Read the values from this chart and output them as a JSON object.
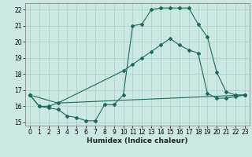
{
  "xlabel": "Humidex (Indice chaleur)",
  "bg_color": "#cce8e4",
  "grid_color": "#aaccc8",
  "line_color": "#1a6b5a",
  "xlim": [
    -0.5,
    23.5
  ],
  "ylim": [
    14.8,
    22.4
  ],
  "xticks": [
    0,
    1,
    2,
    3,
    4,
    5,
    6,
    7,
    8,
    9,
    10,
    11,
    12,
    13,
    14,
    15,
    16,
    17,
    18,
    19,
    20,
    21,
    22,
    23
  ],
  "yticks": [
    15,
    16,
    17,
    18,
    19,
    20,
    21,
    22
  ],
  "curve1_x": [
    0,
    1,
    2,
    3,
    4,
    5,
    6,
    7,
    8,
    9,
    10,
    11,
    12,
    13,
    14,
    15,
    16,
    17,
    18,
    19,
    20,
    21,
    22,
    23
  ],
  "curve1_y": [
    16.7,
    16.0,
    15.9,
    15.8,
    15.4,
    15.3,
    15.1,
    15.1,
    16.1,
    16.1,
    16.7,
    21.0,
    21.1,
    22.0,
    22.1,
    22.1,
    22.1,
    22.1,
    21.1,
    20.3,
    18.1,
    16.9,
    16.7,
    16.7
  ],
  "curve2_x": [
    0,
    1,
    2,
    3,
    10,
    11,
    12,
    13,
    14,
    15,
    16,
    17,
    18,
    19,
    20,
    21,
    22,
    23
  ],
  "curve2_y": [
    16.7,
    16.0,
    16.0,
    16.2,
    18.2,
    18.6,
    19.0,
    19.4,
    19.8,
    20.2,
    19.8,
    19.5,
    19.3,
    16.8,
    16.5,
    16.5,
    16.6,
    16.7
  ],
  "curve3_x": [
    0,
    3,
    23
  ],
  "curve3_y": [
    16.7,
    16.2,
    16.7
  ]
}
